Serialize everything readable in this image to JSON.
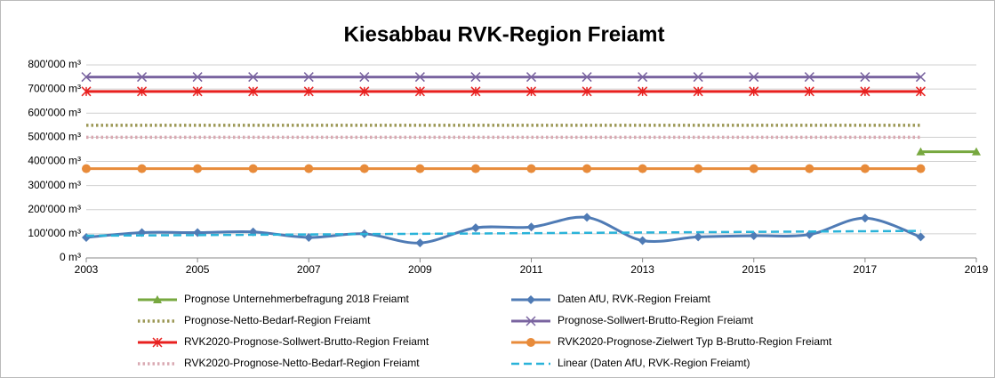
{
  "chart_data": {
    "type": "line",
    "title": "Kiesabbau RVK-Region Freiamt",
    "xlim": [
      2003,
      2019
    ],
    "xticks": [
      2003,
      2005,
      2007,
      2009,
      2011,
      2013,
      2015,
      2017,
      2019
    ],
    "ylim": [
      0,
      800000
    ],
    "yticks": [
      {
        "value": 0,
        "label": "0 m³"
      },
      {
        "value": 100000,
        "label": "100'000 m³"
      },
      {
        "value": 200000,
        "label": "200'000 m³"
      },
      {
        "value": 300000,
        "label": "300'000 m³"
      },
      {
        "value": 400000,
        "label": "400'000 m³"
      },
      {
        "value": 500000,
        "label": "500'000 m³"
      },
      {
        "value": 600000,
        "label": "600'000 m³"
      },
      {
        "value": 700000,
        "label": "700'000 m³"
      },
      {
        "value": 800000,
        "label": "800'000 m³"
      }
    ],
    "grid": true,
    "legend": "bottom",
    "series": [
      {
        "name": "Prognose Unternehmerbefragung 2018 Freiamt",
        "color": "#77a83f",
        "marker": "triangle",
        "line": "solid",
        "x": [
          2018,
          2019
        ],
        "values": [
          440000,
          440000
        ]
      },
      {
        "name": "Daten AfU, RVK-Region Freiamt",
        "color": "#4f7bb5",
        "marker": "diamond",
        "line": "smooth",
        "x": [
          2003,
          2004,
          2005,
          2006,
          2007,
          2008,
          2009,
          2010,
          2011,
          2012,
          2013,
          2014,
          2015,
          2016,
          2017,
          2018
        ],
        "values": [
          85000,
          105000,
          105000,
          108000,
          85000,
          100000,
          62000,
          125000,
          128000,
          168000,
          72000,
          87000,
          92000,
          97000,
          165000,
          87000
        ]
      },
      {
        "name": "Prognose-Netto-Bedarf-Region Freiamt",
        "color": "#9c9856",
        "marker": "none",
        "line": "dotted",
        "x": [
          2003,
          2018
        ],
        "values": [
          550000,
          550000
        ]
      },
      {
        "name": "Prognose-Sollwert-Brutto-Region Freiamt",
        "color": "#7a64a0",
        "marker": "x",
        "line": "solid",
        "x": [
          2003,
          2004,
          2005,
          2006,
          2007,
          2008,
          2009,
          2010,
          2011,
          2012,
          2013,
          2014,
          2015,
          2016,
          2017,
          2018
        ],
        "values": [
          750000,
          750000,
          750000,
          750000,
          750000,
          750000,
          750000,
          750000,
          750000,
          750000,
          750000,
          750000,
          750000,
          750000,
          750000,
          750000
        ]
      },
      {
        "name": "RVK2020-Prognose-Sollwert-Brutto-Region Freiamt",
        "color": "#e8201f",
        "marker": "asterisk",
        "line": "solid",
        "x": [
          2003,
          2004,
          2005,
          2006,
          2007,
          2008,
          2009,
          2010,
          2011,
          2012,
          2013,
          2014,
          2015,
          2016,
          2017,
          2018
        ],
        "values": [
          690000,
          690000,
          690000,
          690000,
          690000,
          690000,
          690000,
          690000,
          690000,
          690000,
          690000,
          690000,
          690000,
          690000,
          690000,
          690000
        ]
      },
      {
        "name": "RVK2020-Prognose-Zielwert Typ B-Brutto-Region Freiamt",
        "color": "#e88b3a",
        "marker": "circle",
        "line": "solid",
        "x": [
          2003,
          2004,
          2005,
          2006,
          2007,
          2008,
          2009,
          2010,
          2011,
          2012,
          2013,
          2014,
          2015,
          2016,
          2017,
          2018
        ],
        "values": [
          370000,
          370000,
          370000,
          370000,
          370000,
          370000,
          370000,
          370000,
          370000,
          370000,
          370000,
          370000,
          370000,
          370000,
          370000,
          370000
        ]
      },
      {
        "name": "RVK2020-Prognose-Netto-Bedarf-Region Freiamt",
        "color": "#d9a9b2",
        "marker": "none",
        "line": "dotted",
        "x": [
          2003,
          2018
        ],
        "values": [
          500000,
          500000
        ]
      },
      {
        "name": "Linear (Daten AfU, RVK-Region Freiamt)",
        "color": "#2ab3d9",
        "marker": "none",
        "line": "dashed",
        "x": [
          2003,
          2018
        ],
        "values": [
          92000,
          112000
        ]
      }
    ]
  }
}
